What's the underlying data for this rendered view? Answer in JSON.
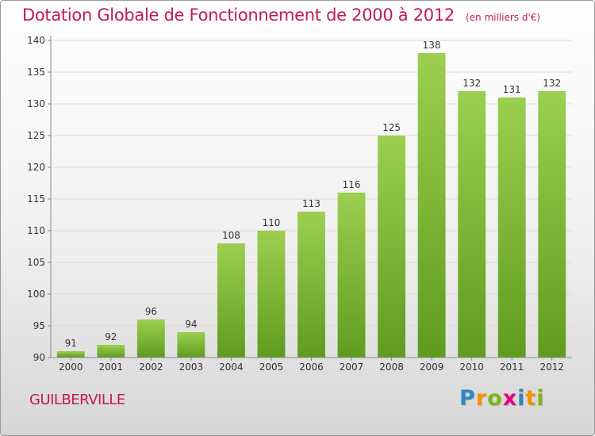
{
  "title": "Dotation Globale de Fonctionnement de 2000 à 2012",
  "subtitle": "(en milliers d'€)",
  "commune": "GUILBERVILLE",
  "logo": {
    "letters": [
      "P",
      "r",
      "o",
      "x",
      "i",
      "t",
      "i"
    ],
    "colors": [
      "#2e86c8",
      "#f39200",
      "#7cb518",
      "#e6007e",
      "#2e86c8",
      "#f39200",
      "#7cb518"
    ]
  },
  "chart_data": {
    "type": "bar",
    "title": "Dotation Globale de Fonctionnement de 2000 à 2012",
    "subtitle": "(en milliers d'€)",
    "xlabel": "",
    "ylabel": "",
    "categories": [
      "2000",
      "2001",
      "2002",
      "2003",
      "2004",
      "2005",
      "2006",
      "2007",
      "2008",
      "2009",
      "2010",
      "2011",
      "2012"
    ],
    "values": [
      91,
      92,
      96,
      94,
      108,
      110,
      113,
      116,
      125,
      138,
      132,
      131,
      132
    ],
    "ylim": [
      90,
      140
    ],
    "yticks": [
      90,
      95,
      100,
      105,
      110,
      115,
      120,
      125,
      130,
      135,
      140
    ],
    "grid": true,
    "legend": "none",
    "bar_color_top": "#9ccf4f",
    "bar_color_bottom": "#5f9c1e"
  }
}
